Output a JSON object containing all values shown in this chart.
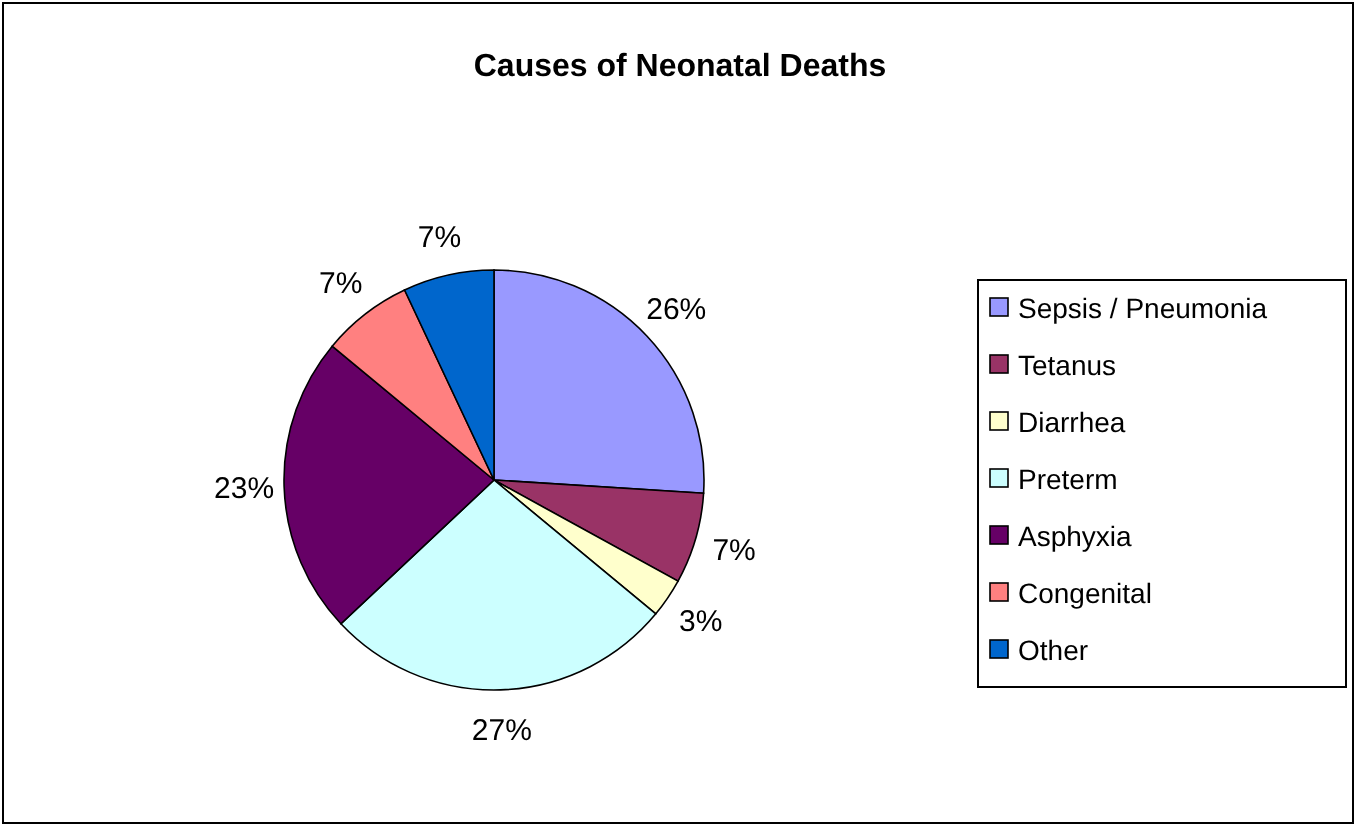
{
  "chart_data": {
    "type": "pie",
    "title": "Causes of Neonatal Deaths",
    "categories": [
      "Sepsis / Pneumonia",
      "Tetanus",
      "Diarrhea",
      "Preterm",
      "Asphyxia",
      "Congenital",
      "Other"
    ],
    "values": [
      26,
      7,
      3,
      27,
      23,
      7,
      7
    ],
    "colors": [
      "#9999ff",
      "#993366",
      "#ffffcc",
      "#ccffff",
      "#660066",
      "#ff8080",
      "#0066cc"
    ],
    "value_labels": [
      "26%",
      "7%",
      "3%",
      "27%",
      "23%",
      "7%",
      "7%"
    ],
    "legend": "right"
  }
}
